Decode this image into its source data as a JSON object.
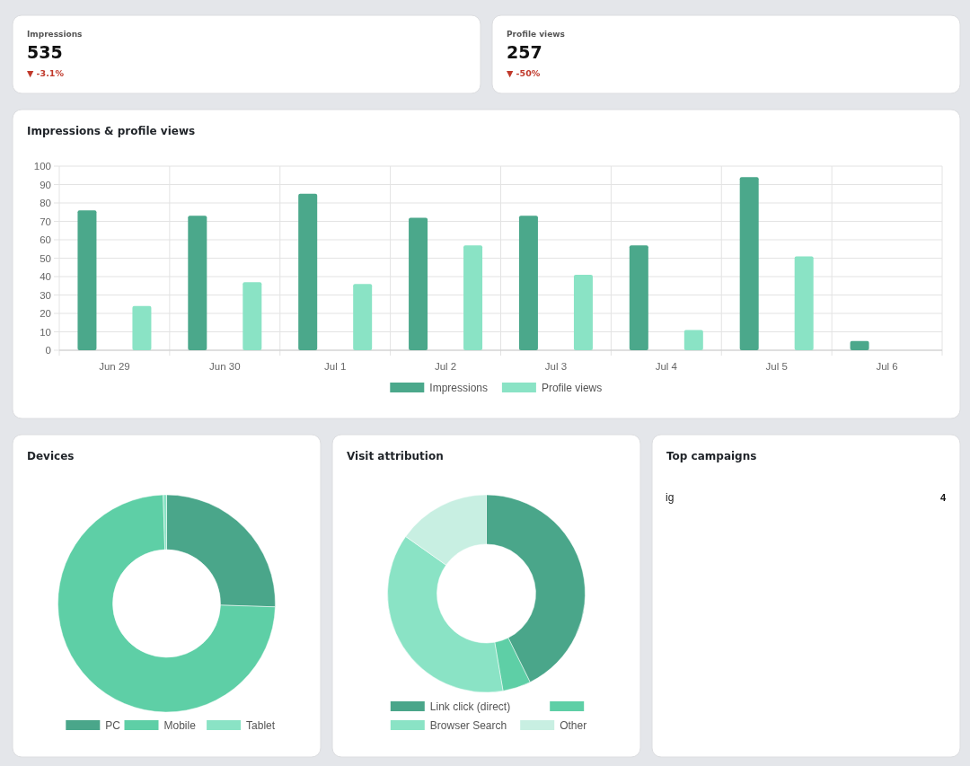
{
  "chart_data": [
    {
      "type": "other",
      "title": "Impressions",
      "annotations": [
        "535",
        "▼ -3.1%"
      ]
    },
    {
      "type": "other",
      "title": "Profile views",
      "annotations": [
        "257",
        "▼ -50%"
      ]
    },
    {
      "type": "bar",
      "title": "Impressions & profile views",
      "categories": [
        "Jun 29",
        "Jun 30",
        "Jul 1",
        "Jul 2",
        "Jul 3",
        "Jul 4",
        "Jul 5",
        "Jul 6"
      ],
      "series": [
        {
          "name": "Impressions",
          "color": "#4ba88b",
          "values": [
            76,
            73,
            85,
            72,
            73,
            57,
            94,
            5
          ]
        },
        {
          "name": "Profile views",
          "color": "#8ae3c5",
          "values": [
            24,
            37,
            36,
            57,
            41,
            11,
            51,
            0
          ]
        }
      ],
      "ylim": [
        0,
        100
      ],
      "yticks": [
        0,
        10,
        20,
        30,
        40,
        50,
        60,
        70,
        80,
        90,
        100
      ],
      "grid": true,
      "legend": "bottom"
    },
    {
      "type": "donut",
      "title": "Devices",
      "categories": [
        "PC",
        "Mobile",
        "Tablet"
      ],
      "values": [
        25.5,
        74,
        0.5
      ],
      "colors": [
        "#4aa68a",
        "#5ecfa6",
        "#8ae3c5"
      ],
      "legend": "bottom"
    },
    {
      "type": "donut",
      "title": "Visit attribution",
      "categories": [
        "Link click (direct)",
        null,
        "Browser Search",
        "Other"
      ],
      "values": [
        42.7,
        4.6,
        37.5,
        15.2
      ],
      "colors": [
        "#4aa68a",
        "#5ecfa6",
        "#8ae3c5",
        "#c8efe2"
      ],
      "legend": "bottom"
    },
    {
      "type": "other",
      "title": "Top campaigns",
      "annotations": [
        "ig",
        "4"
      ]
    }
  ]
}
